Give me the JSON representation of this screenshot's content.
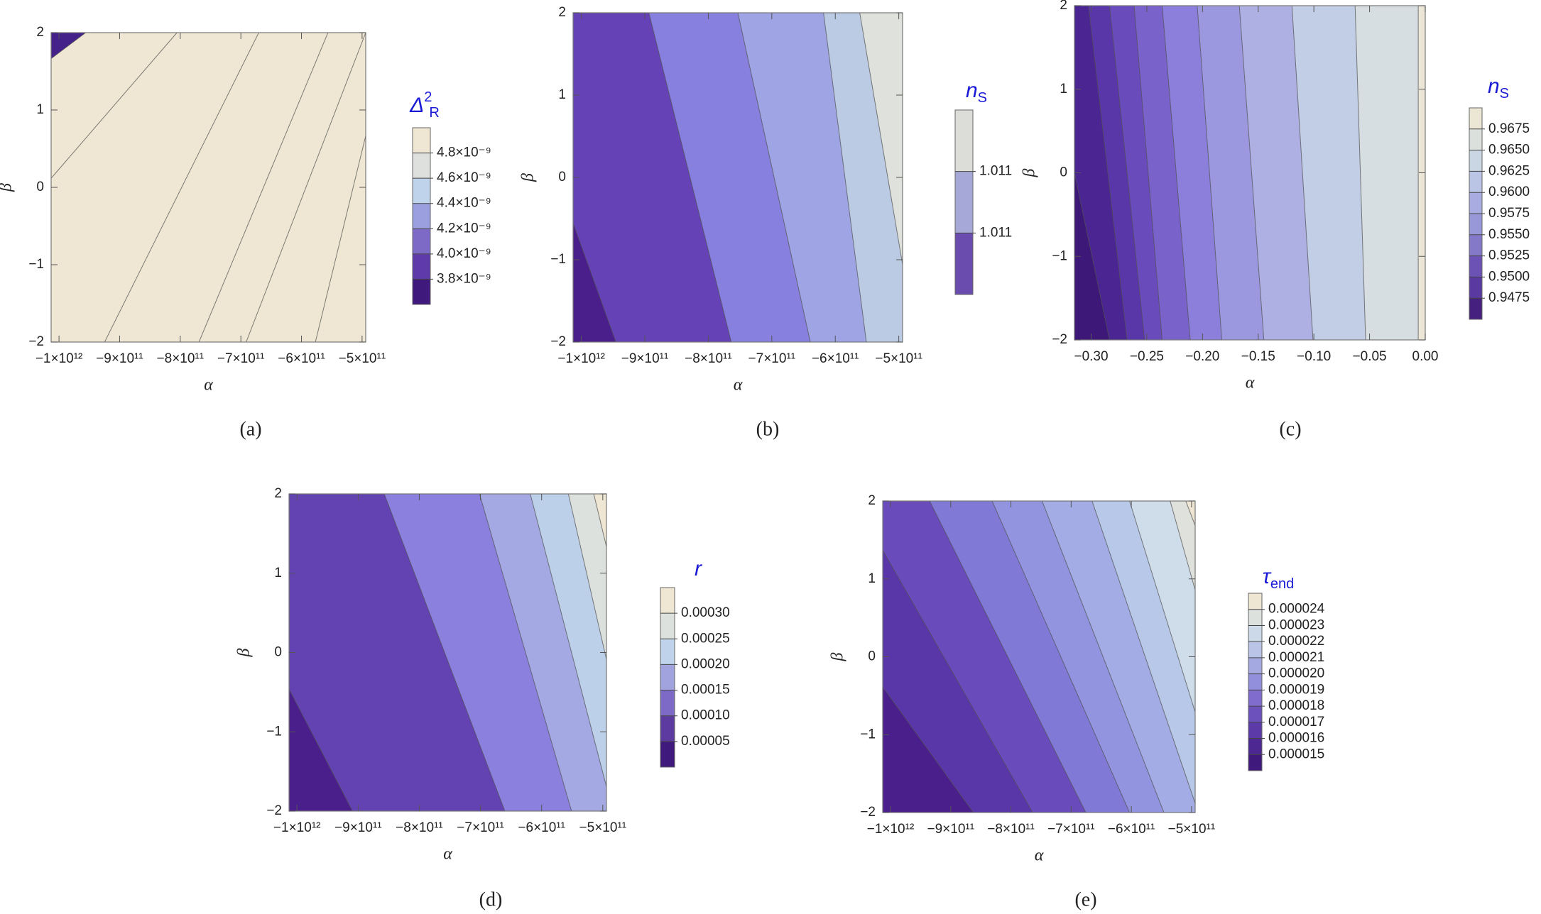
{
  "chart_data": [
    {
      "type": "contour",
      "caption": "(a)",
      "x_label": "α",
      "y_label": "β",
      "xlim": [
        -1013000000000.0,
        -494000000000.0
      ],
      "ylim": [
        -2,
        2
      ],
      "xticks": [
        {
          "value": -1000000000000.0,
          "label": "−1×10¹²"
        },
        {
          "value": -900000000000.0,
          "label": "−9×10¹¹"
        },
        {
          "value": -800000000000.0,
          "label": "−8×10¹¹"
        },
        {
          "value": -700000000000.0,
          "label": "−7×10¹¹"
        },
        {
          "value": -600000000000.0,
          "label": "−6×10¹¹"
        },
        {
          "value": -500000000000.0,
          "label": "−5×10¹¹"
        }
      ],
      "yticks": [
        {
          "value": -2,
          "label": "−2"
        },
        {
          "value": -1,
          "label": "−1"
        },
        0,
        1,
        2
      ],
      "legend_title": {
        "main": "Δ",
        "sup": "2",
        "sub": "R"
      },
      "levels": [
        {
          "value": 3.8e-09,
          "label": "3.8×10⁻⁹"
        },
        {
          "value": 4e-09,
          "label": "4.0×10⁻⁹"
        },
        {
          "value": 4.2e-09,
          "label": "4.2×10⁻⁹"
        },
        {
          "value": 4.4e-09,
          "label": "4.4×10⁻⁹"
        },
        {
          "value": 4.6e-09,
          "label": "4.6×10⁻⁹"
        },
        {
          "value": 4.8e-09,
          "label": "4.8×10⁻⁹"
        }
      ],
      "colors": [
        "#3f1a7c",
        "#5e3aaa",
        "#7c6ac6",
        "#9b9fe0",
        "#bfd4ea",
        "#dde0dc",
        "#efe7d3"
      ],
      "region_colors": [
        "#45218a",
        "#5e3aaa",
        "#6f55c2",
        "#9b9fe0",
        "#bfd4ea",
        "#dde0dc",
        "#efe7d3"
      ]
    },
    {
      "type": "contour",
      "caption": "(b)",
      "x_label": "α",
      "y_label": "β",
      "xlim": [
        -1013000000000.0,
        -494000000000.0
      ],
      "ylim": [
        -2,
        2
      ],
      "xticks": [
        {
          "value": -1000000000000.0,
          "label": "−1×10¹²"
        },
        {
          "value": -900000000000.0,
          "label": "−9×10¹¹"
        },
        {
          "value": -800000000000.0,
          "label": "−8×10¹¹"
        },
        {
          "value": -700000000000.0,
          "label": "−7×10¹¹"
        },
        {
          "value": -600000000000.0,
          "label": "−6×10¹¹"
        },
        {
          "value": -500000000000.0,
          "label": "−5×10¹¹"
        }
      ],
      "yticks": [
        {
          "value": -2,
          "label": "−2"
        },
        {
          "value": -1,
          "label": "−1"
        },
        0,
        1,
        2
      ],
      "legend_title": {
        "main": "n",
        "sub": "S"
      },
      "levels": [
        1.011,
        1.011
      ],
      "colors": [
        "#6a4bae",
        "#a6a8d8",
        "#dcdcd8"
      ],
      "region_colors": [
        "#4a1f8c",
        "#6542b5",
        "#8780df",
        "#9fa4e4",
        "#bccbe4",
        "#dfe1dc"
      ]
    },
    {
      "type": "contour",
      "caption": "(c)",
      "x_label": "α",
      "y_label": "β",
      "xlim": [
        -0.315,
        0.0
      ],
      "ylim": [
        -2,
        2
      ],
      "xticks": [
        {
          "value": -0.3,
          "label": "−0.30"
        },
        {
          "value": -0.25,
          "label": "−0.25"
        },
        {
          "value": -0.2,
          "label": "−0.20"
        },
        {
          "value": -0.15,
          "label": "−0.15"
        },
        {
          "value": -0.1,
          "label": "−0.10"
        },
        {
          "value": -0.05,
          "label": "−0.05"
        },
        {
          "value": 0,
          "label": "0.00"
        }
      ],
      "yticks": [
        {
          "value": -2,
          "label": "−2"
        },
        {
          "value": -1,
          "label": "−1"
        },
        0,
        1,
        2
      ],
      "legend_title": {
        "main": "n",
        "sub": "S"
      },
      "levels": [
        0.9475,
        {
          "value": 0.95,
          "label": "0.9500"
        },
        0.9525,
        {
          "value": 0.955,
          "label": "0.9550"
        },
        0.9575,
        {
          "value": 0.96,
          "label": "0.9600"
        },
        0.9625,
        {
          "value": 0.965,
          "label": "0.9650"
        },
        0.9675
      ],
      "colors": [
        "#45207f",
        "#5a3aa0",
        "#6d52b6",
        "#8479c9",
        "#9898d8",
        "#a9ace0",
        "#bac4e4",
        "#cad6e4",
        "#dbe0dc",
        "#ece6d4"
      ],
      "region_colors": [
        "#3d1878",
        "#4b2692",
        "#5a37a8",
        "#6a4bbc",
        "#7a62cb",
        "#8b7fdb",
        "#9c98e0",
        "#aeb0e4",
        "#c2cde6",
        "#d6dee1",
        "#ebe6d5"
      ]
    },
    {
      "type": "contour",
      "caption": "(d)",
      "x_label": "α",
      "y_label": "β",
      "xlim": [
        -1013000000000.0,
        -494000000000.0
      ],
      "ylim": [
        -2,
        2
      ],
      "xticks": [
        {
          "value": -1000000000000.0,
          "label": "−1×10¹²"
        },
        {
          "value": -900000000000.0,
          "label": "−9×10¹¹"
        },
        {
          "value": -800000000000.0,
          "label": "−8×10¹¹"
        },
        {
          "value": -700000000000.0,
          "label": "−7×10¹¹"
        },
        {
          "value": -600000000000.0,
          "label": "−6×10¹¹"
        },
        {
          "value": -500000000000.0,
          "label": "−5×10¹¹"
        }
      ],
      "yticks": [
        {
          "value": -2,
          "label": "−2"
        },
        {
          "value": -1,
          "label": "−1"
        },
        0,
        1,
        2
      ],
      "legend_title": {
        "main": "r"
      },
      "levels": [
        5e-05,
        {
          "value": 0.0001,
          "label": "0.00010"
        },
        0.00015,
        {
          "value": 0.0002,
          "label": "0.00020"
        },
        0.00025,
        {
          "value": 0.0003,
          "label": "0.00030"
        }
      ],
      "colors": [
        "#3f1a7c",
        "#5c3aa0",
        "#7c6ac6",
        "#a1a3df",
        "#bfd4ea",
        "#dde1dd",
        "#efe6d3"
      ],
      "region_colors": [
        "#4a1f8c",
        "#6342b2",
        "#8b80de",
        "#a4a9e4",
        "#bdd0ea",
        "#dde1dd",
        "#efe6d3"
      ]
    },
    {
      "type": "contour",
      "caption": "(e)",
      "x_label": "α",
      "y_label": "β",
      "xlim": [
        -1013000000000.0,
        -494000000000.0
      ],
      "ylim": [
        -2,
        2
      ],
      "xticks": [
        {
          "value": -1000000000000.0,
          "label": "−1×10¹²"
        },
        {
          "value": -900000000000.0,
          "label": "−9×10¹¹"
        },
        {
          "value": -800000000000.0,
          "label": "−8×10¹¹"
        },
        {
          "value": -700000000000.0,
          "label": "−7×10¹¹"
        },
        {
          "value": -600000000000.0,
          "label": "−6×10¹¹"
        },
        {
          "value": -500000000000.0,
          "label": "−5×10¹¹"
        }
      ],
      "yticks": [
        {
          "value": -2,
          "label": "−2"
        },
        {
          "value": -1,
          "label": "−1"
        },
        0,
        1,
        2
      ],
      "legend_title": {
        "main": "τ",
        "sub": "end"
      },
      "levels": [
        1.5e-05,
        1.6e-05,
        1.7e-05,
        1.8e-05,
        1.9e-05,
        {
          "value": 2e-05,
          "label": "0.000020"
        },
        2.1e-05,
        2.2e-05,
        2.3e-05,
        2.4e-05
      ],
      "colors": [
        "#3f1a7c",
        "#4d2893",
        "#5c3aa8",
        "#6c50bc",
        "#7f6ccd",
        "#9290dc",
        "#a5a9e2",
        "#b9c4e6",
        "#cbd9e8",
        "#dde1dd",
        "#eee6d3"
      ],
      "region_colors": [
        "#4a1f8c",
        "#5a37a8",
        "#6a4bbc",
        "#8179d6",
        "#9294e0",
        "#a3ace4",
        "#b8c8e8",
        "#cfdcea",
        "#dfe2dc",
        "#eee6d3"
      ]
    }
  ]
}
